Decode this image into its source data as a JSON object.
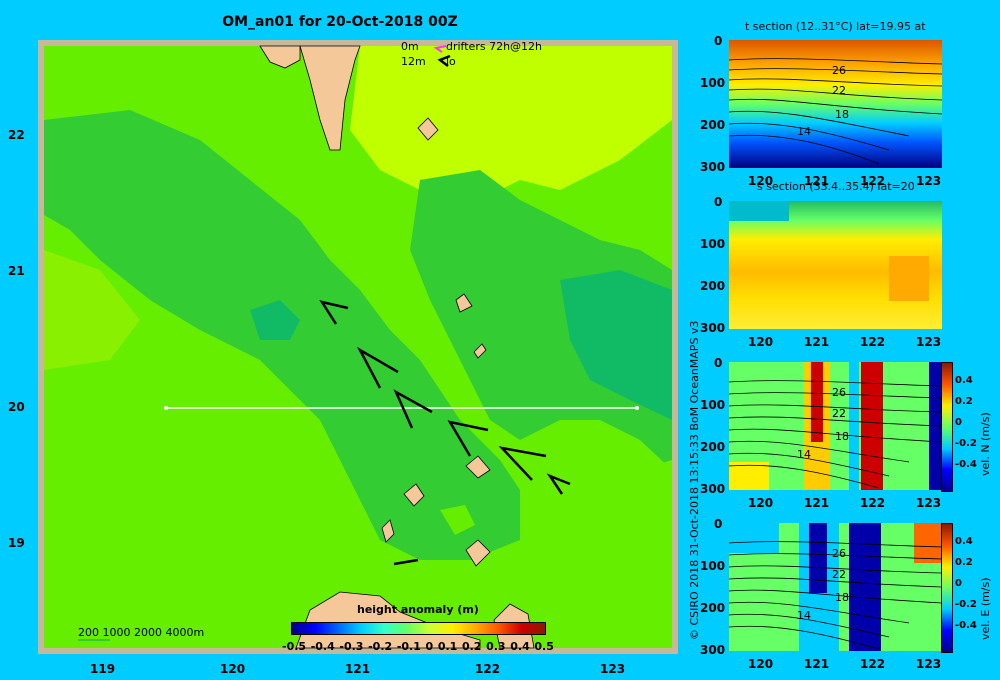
{
  "main_map": {
    "title": "OM_an01 for 20-Oct-2018 00Z",
    "x_ticks": [
      "119",
      "120",
      "121",
      "122",
      "123"
    ],
    "y_ticks": [
      "22",
      "21",
      "20",
      "19"
    ],
    "legend_lines": [
      "0m",
      "12m"
    ],
    "drifter_label": "drifters 72h@12h",
    "drifter_label2": "lo",
    "depth_contours_label": "200  1000  2000  4000m",
    "colorbar_title": "height anomaly (m)",
    "colorbar_ticks": [
      "-0.5",
      "-0.4",
      "-0.3",
      "-0.2",
      "-0.1",
      "0",
      "0.1",
      "0.2",
      "0.3",
      "0.4",
      "0.5"
    ]
  },
  "credit": "© CSIRO 2018   31-Oct-2018 13:15:33 BoM OceanMAPS v3",
  "panels": [
    {
      "title": "t section (12..31°C) lat=19.95 at",
      "x_ticks": [
        "120",
        "121",
        "122",
        "123"
      ],
      "y_ticks": [
        "0",
        "100",
        "200",
        "300"
      ],
      "contour_labels": [
        "26",
        "22",
        "18",
        "14"
      ]
    },
    {
      "title": "s section (33.4..35.4) lat=20",
      "x_ticks": [
        "120",
        "121",
        "122",
        "123"
      ],
      "y_ticks": [
        "0",
        "100",
        "200",
        "300"
      ]
    },
    {
      "title": "",
      "x_ticks": [
        "120",
        "121",
        "122",
        "123"
      ],
      "y_ticks": [
        "0",
        "100",
        "200",
        "300"
      ],
      "contour_labels": [
        "26",
        "22",
        "18",
        "14"
      ],
      "cbar_ticks": [
        "0.4",
        "0.2",
        "0",
        "-0.2",
        "-0.4"
      ],
      "cbar_label": "vel. N (m/s)"
    },
    {
      "title": "",
      "x_ticks": [
        "120",
        "121",
        "122",
        "123"
      ],
      "y_ticks": [
        "0",
        "100",
        "200",
        "300"
      ],
      "contour_labels": [
        "26",
        "22",
        "18",
        "14"
      ],
      "cbar_ticks": [
        "0.4",
        "0.2",
        "0",
        "-0.2",
        "-0.4"
      ],
      "cbar_label": "vel. E (m/s)"
    }
  ],
  "colors": {
    "background": "#00ccff",
    "land": "#f5c89a",
    "sea_light": "#bfff00",
    "sea_mid": "#66ee00",
    "sea_dark": "#22bb33",
    "sea_darker": "#11aa66"
  },
  "chart_data": {
    "type": "heatmap",
    "title": "OM_an01 for 20-Oct-2018 00Z",
    "xlabel": "",
    "ylabel": "",
    "xlim": [
      118.5,
      123.5
    ],
    "ylim": [
      18.25,
      22.7
    ],
    "colorbar": {
      "label": "height anomaly (m)",
      "range": [
        -0.5,
        0.5
      ]
    },
    "section_line": {
      "lat": 20,
      "lon_range": [
        119.5,
        123.2
      ]
    },
    "grid": false
  }
}
